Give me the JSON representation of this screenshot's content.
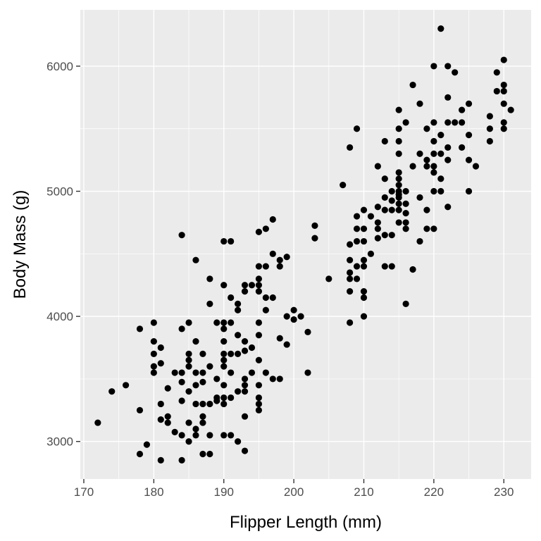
{
  "colors": {
    "panel": "#ebebeb",
    "grid": "#ffffff",
    "point": "#000000",
    "tick_text": "#4d4d4d"
  },
  "chart_data": {
    "type": "scatter",
    "title": "",
    "xlabel": "Flipper Length (mm)",
    "ylabel": "Body Mass (g)",
    "xlim": [
      169.5,
      233.9
    ],
    "ylim": [
      2700,
      6450
    ],
    "x_ticks": [
      170,
      180,
      190,
      200,
      210,
      220,
      230
    ],
    "y_ticks": [
      3000,
      4000,
      5000,
      6000
    ],
    "grid": true,
    "legend": "none",
    "points": [
      [
        172,
        3150
      ],
      [
        174,
        3400
      ],
      [
        176,
        3450
      ],
      [
        178,
        3900
      ],
      [
        178,
        3250
      ],
      [
        178,
        2900
      ],
      [
        179,
        2975
      ],
      [
        180,
        3950
      ],
      [
        180,
        3800
      ],
      [
        180,
        3700
      ],
      [
        180,
        3600
      ],
      [
        180,
        3550
      ],
      [
        181,
        3750
      ],
      [
        181,
        3625
      ],
      [
        181,
        3300
      ],
      [
        181,
        3175
      ],
      [
        181,
        2850
      ],
      [
        182,
        3425
      ],
      [
        182,
        3200
      ],
      [
        182,
        3150
      ],
      [
        183,
        3550
      ],
      [
        183,
        3075
      ],
      [
        184,
        4650
      ],
      [
        184,
        3900
      ],
      [
        184,
        3550
      ],
      [
        184,
        3475
      ],
      [
        184,
        3325
      ],
      [
        184,
        3050
      ],
      [
        184,
        2850
      ],
      [
        185,
        3950
      ],
      [
        185,
        3700
      ],
      [
        185,
        3650
      ],
      [
        185,
        3600
      ],
      [
        185,
        3400
      ],
      [
        185,
        3150
      ],
      [
        185,
        3000
      ],
      [
        186,
        4450
      ],
      [
        186,
        3800
      ],
      [
        186,
        3550
      ],
      [
        186,
        3450
      ],
      [
        186,
        3300
      ],
      [
        186,
        3100
      ],
      [
        186,
        3050
      ],
      [
        187,
        3700
      ],
      [
        187,
        3550
      ],
      [
        187,
        3475
      ],
      [
        187,
        3300
      ],
      [
        187,
        3200
      ],
      [
        187,
        3150
      ],
      [
        187,
        2900
      ],
      [
        188,
        4300
      ],
      [
        188,
        4100
      ],
      [
        188,
        3600
      ],
      [
        188,
        3300
      ],
      [
        188,
        3050
      ],
      [
        188,
        2900
      ],
      [
        189,
        3950
      ],
      [
        189,
        3500
      ],
      [
        189,
        3350
      ],
      [
        189,
        3325
      ],
      [
        190,
        4600
      ],
      [
        190,
        4250
      ],
      [
        190,
        3950
      ],
      [
        190,
        3900
      ],
      [
        190,
        3800
      ],
      [
        190,
        3700
      ],
      [
        190,
        3650
      ],
      [
        190,
        3600
      ],
      [
        190,
        3450
      ],
      [
        190,
        3350
      ],
      [
        190,
        3300
      ],
      [
        190,
        3050
      ],
      [
        191,
        4600
      ],
      [
        191,
        4150
      ],
      [
        191,
        3950
      ],
      [
        191,
        3700
      ],
      [
        191,
        3550
      ],
      [
        191,
        3350
      ],
      [
        191,
        3050
      ],
      [
        192,
        4100
      ],
      [
        192,
        4050
      ],
      [
        192,
        3850
      ],
      [
        192,
        3700
      ],
      [
        192,
        3400
      ],
      [
        192,
        3000
      ],
      [
        193,
        4250
      ],
      [
        193,
        4200
      ],
      [
        193,
        3800
      ],
      [
        193,
        3725
      ],
      [
        193,
        3500
      ],
      [
        193,
        3450
      ],
      [
        193,
        3400
      ],
      [
        193,
        3200
      ],
      [
        193,
        2925
      ],
      [
        194,
        4250
      ],
      [
        194,
        3750
      ],
      [
        194,
        3550
      ],
      [
        195,
        4675
      ],
      [
        195,
        4400
      ],
      [
        195,
        4300
      ],
      [
        195,
        4250
      ],
      [
        195,
        4200
      ],
      [
        195,
        3950
      ],
      [
        195,
        3850
      ],
      [
        195,
        3650
      ],
      [
        195,
        3450
      ],
      [
        195,
        3350
      ],
      [
        195,
        3300
      ],
      [
        195,
        3250
      ],
      [
        196,
        4700
      ],
      [
        196,
        4400
      ],
      [
        196,
        4150
      ],
      [
        196,
        4050
      ],
      [
        196,
        3550
      ],
      [
        197,
        4775
      ],
      [
        197,
        4500
      ],
      [
        197,
        4150
      ],
      [
        197,
        3500
      ],
      [
        198,
        4450
      ],
      [
        198,
        4400
      ],
      [
        198,
        3825
      ],
      [
        198,
        3500
      ],
      [
        199,
        4475
      ],
      [
        199,
        4000
      ],
      [
        199,
        3775
      ],
      [
        200,
        4050
      ],
      [
        200,
        3975
      ],
      [
        201,
        4000
      ],
      [
        202,
        3875
      ],
      [
        202,
        3550
      ],
      [
        203,
        4725
      ],
      [
        203,
        4625
      ],
      [
        205,
        4300
      ],
      [
        207,
        5050
      ],
      [
        208,
        5350
      ],
      [
        208,
        4575
      ],
      [
        208,
        4450
      ],
      [
        208,
        4350
      ],
      [
        208,
        4300
      ],
      [
        208,
        4200
      ],
      [
        208,
        3950
      ],
      [
        209,
        5500
      ],
      [
        209,
        4800
      ],
      [
        209,
        4700
      ],
      [
        209,
        4600
      ],
      [
        209,
        4400
      ],
      [
        209,
        4300
      ],
      [
        210,
        4850
      ],
      [
        210,
        4700
      ],
      [
        210,
        4600
      ],
      [
        210,
        4450
      ],
      [
        210,
        4400
      ],
      [
        210,
        4200
      ],
      [
        210,
        4150
      ],
      [
        210,
        4000
      ],
      [
        211,
        4800
      ],
      [
        211,
        4500
      ],
      [
        212,
        5200
      ],
      [
        212,
        4875
      ],
      [
        212,
        4750
      ],
      [
        212,
        4700
      ],
      [
        212,
        4625
      ],
      [
        213,
        5400
      ],
      [
        213,
        5100
      ],
      [
        213,
        4950
      ],
      [
        213,
        4850
      ],
      [
        213,
        4650
      ],
      [
        213,
        4400
      ],
      [
        214,
        5000
      ],
      [
        214,
        4925
      ],
      [
        214,
        4850
      ],
      [
        214,
        4650
      ],
      [
        214,
        4400
      ],
      [
        215,
        5650
      ],
      [
        215,
        5500
      ],
      [
        215,
        5400
      ],
      [
        215,
        5300
      ],
      [
        215,
        5150
      ],
      [
        215,
        5100
      ],
      [
        215,
        5050
      ],
      [
        215,
        5000
      ],
      [
        215,
        4975
      ],
      [
        215,
        4950
      ],
      [
        215,
        4900
      ],
      [
        215,
        4850
      ],
      [
        215,
        4750
      ],
      [
        216,
        5550
      ],
      [
        216,
        5000
      ],
      [
        216,
        4900
      ],
      [
        216,
        4825
      ],
      [
        216,
        4750
      ],
      [
        216,
        4700
      ],
      [
        216,
        4100
      ],
      [
        217,
        5850
      ],
      [
        217,
        5200
      ],
      [
        217,
        4375
      ],
      [
        218,
        5700
      ],
      [
        218,
        5300
      ],
      [
        218,
        4950
      ],
      [
        218,
        4600
      ],
      [
        219,
        5500
      ],
      [
        219,
        5250
      ],
      [
        219,
        5200
      ],
      [
        219,
        4850
      ],
      [
        219,
        4700
      ],
      [
        220,
        6000
      ],
      [
        220,
        5550
      ],
      [
        220,
        5400
      ],
      [
        220,
        5300
      ],
      [
        220,
        5200
      ],
      [
        220,
        5150
      ],
      [
        220,
        5000
      ],
      [
        220,
        4700
      ],
      [
        221,
        6300
      ],
      [
        221,
        5450
      ],
      [
        221,
        5300
      ],
      [
        221,
        5100
      ],
      [
        221,
        5000
      ],
      [
        222,
        6000
      ],
      [
        222,
        5750
      ],
      [
        222,
        5550
      ],
      [
        222,
        5350
      ],
      [
        222,
        5250
      ],
      [
        222,
        4875
      ],
      [
        223,
        5950
      ],
      [
        223,
        5550
      ],
      [
        224,
        5650
      ],
      [
        224,
        5550
      ],
      [
        224,
        5350
      ],
      [
        225,
        5700
      ],
      [
        225,
        5450
      ],
      [
        225,
        5250
      ],
      [
        225,
        5000
      ],
      [
        226,
        5200
      ],
      [
        228,
        5600
      ],
      [
        228,
        5500
      ],
      [
        228,
        5400
      ],
      [
        229,
        5950
      ],
      [
        229,
        5800
      ],
      [
        230,
        6050
      ],
      [
        230,
        5850
      ],
      [
        230,
        5800
      ],
      [
        230,
        5700
      ],
      [
        230,
        5550
      ],
      [
        230,
        5500
      ],
      [
        231,
        5650
      ]
    ]
  }
}
